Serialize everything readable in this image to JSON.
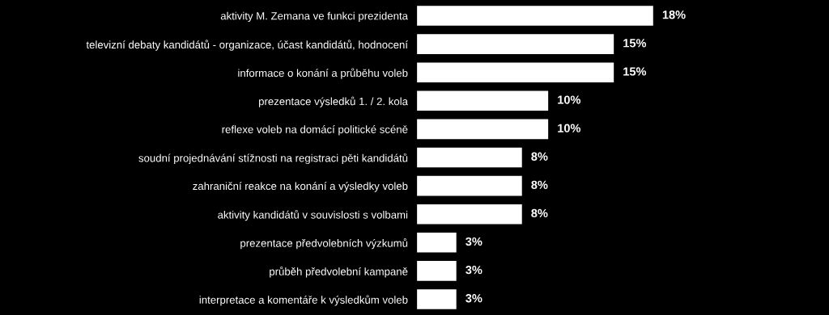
{
  "chart_data": {
    "type": "bar",
    "orientation": "horizontal",
    "categories": [
      "aktivity M. Zemana ve funkci prezidenta",
      "televizní debaty kandidátů - organizace, účast kandidátů, hodnocení",
      "informace o konání a průběhu voleb",
      "prezentace výsledků 1. / 2. kola",
      "reflexe voleb na domácí politické scéně",
      "soudní projednávání stížnosti na registraci pěti kandidátů",
      "zahraniční reakce na konání a výsledky voleb",
      "aktivity kandidátů v souvislosti s volbami",
      "prezentace předvolebních výzkumů",
      "průběh předvolební kampaně",
      "interpretace a komentáře k výsledkům voleb"
    ],
    "values": [
      18,
      15,
      15,
      10,
      10,
      8,
      8,
      8,
      3,
      3,
      3
    ],
    "value_labels": [
      "18%",
      "15%",
      "15%",
      "10%",
      "10%",
      "8%",
      "8%",
      "8%",
      "3%",
      "3%",
      "3%"
    ],
    "color": "#ffffff",
    "grid": false,
    "legend": false,
    "tick_labels": "y"
  }
}
